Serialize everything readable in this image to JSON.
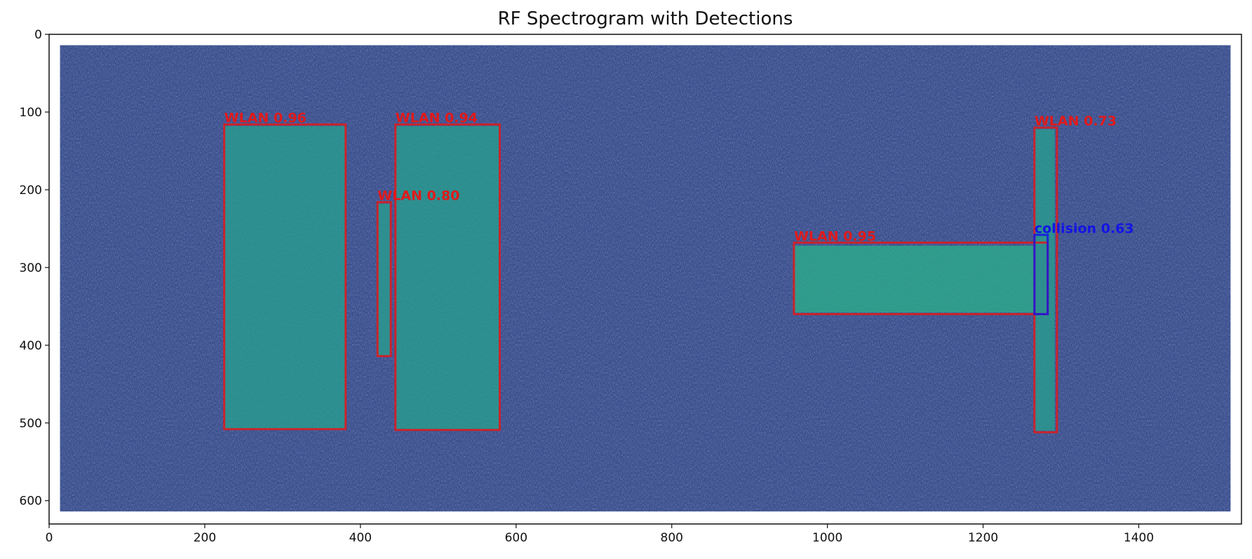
{
  "chart_data": {
    "type": "heatmap",
    "title": "RF Spectrogram with Detections",
    "xlabel": "",
    "ylabel": "",
    "xlim": [
      0,
      1532
    ],
    "ylim": [
      630,
      0
    ],
    "x_ticks": [
      0,
      200,
      400,
      600,
      800,
      1000,
      1200,
      1400
    ],
    "y_ticks": [
      0,
      100,
      200,
      300,
      400,
      500,
      600
    ],
    "x_tick_labels": [
      "0",
      "200",
      "400",
      "600",
      "800",
      "1000",
      "1200",
      "1400"
    ],
    "y_tick_labels": [
      "0",
      "100",
      "200",
      "300",
      "400",
      "500",
      "600"
    ],
    "image_extent": {
      "x": [
        14,
        1518
      ],
      "y": [
        14,
        614
      ]
    },
    "colors": {
      "background": "#3a4f8e",
      "signal": "#2a8c8c",
      "signal_alt": "#2c9a88",
      "noise_dark": "#34407a",
      "noise_light": "#4a63a0",
      "class_wlan": "#e01a1a",
      "class_collision": "#1414e6"
    },
    "signals": [
      {
        "x": [
          226,
          380
        ],
        "y": [
          118,
          508
        ]
      },
      {
        "x": [
          423,
          438
        ],
        "y": [
          218,
          413
        ]
      },
      {
        "x": [
          446,
          578
        ],
        "y": [
          118,
          508
        ]
      },
      {
        "x": [
          958,
          1268
        ],
        "y": [
          272,
          358
        ]
      },
      {
        "x": [
          1267,
          1292
        ],
        "y": [
          122,
          510
        ]
      }
    ],
    "detections": [
      {
        "label": "WLAN 0.96",
        "class": "WLAN",
        "score": 0.96,
        "x": [
          225,
          381
        ],
        "y": [
          116,
          508
        ]
      },
      {
        "label": "WLAN 0.94",
        "class": "WLAN",
        "score": 0.94,
        "x": [
          445,
          579
        ],
        "y": [
          116,
          509
        ]
      },
      {
        "label": "WLAN 0.80",
        "class": "WLAN",
        "score": 0.8,
        "x": [
          422,
          439
        ],
        "y": [
          216,
          414
        ]
      },
      {
        "label": "WLAN 0.95",
        "class": "WLAN",
        "score": 0.95,
        "x": [
          957,
          1283
        ],
        "y": [
          268,
          360
        ]
      },
      {
        "label": "WLAN 0.73",
        "class": "WLAN",
        "score": 0.73,
        "x": [
          1266,
          1295
        ],
        "y": [
          120,
          512
        ]
      },
      {
        "label": "collision 0.63",
        "class": "collision",
        "score": 0.63,
        "x": [
          1266,
          1283
        ],
        "y": [
          258,
          360
        ]
      }
    ]
  }
}
